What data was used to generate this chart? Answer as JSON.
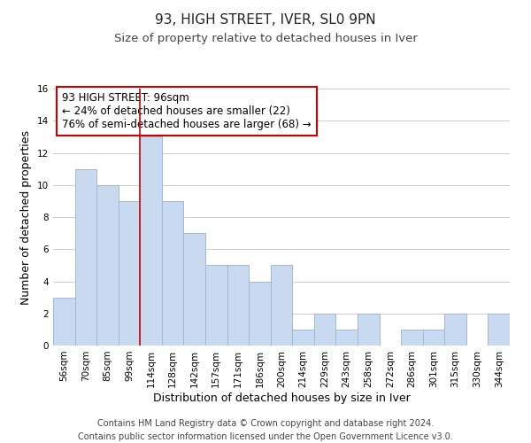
{
  "title": "93, HIGH STREET, IVER, SL0 9PN",
  "subtitle": "Size of property relative to detached houses in Iver",
  "xlabel": "Distribution of detached houses by size in Iver",
  "ylabel": "Number of detached properties",
  "footer_line1": "Contains HM Land Registry data © Crown copyright and database right 2024.",
  "footer_line2": "Contains public sector information licensed under the Open Government Licence v3.0.",
  "annotation_line1": "93 HIGH STREET: 96sqm",
  "annotation_line2": "← 24% of detached houses are smaller (22)",
  "annotation_line3": "76% of semi-detached houses are larger (68) →",
  "bar_labels": [
    "56sqm",
    "70sqm",
    "85sqm",
    "99sqm",
    "114sqm",
    "128sqm",
    "142sqm",
    "157sqm",
    "171sqm",
    "186sqm",
    "200sqm",
    "214sqm",
    "229sqm",
    "243sqm",
    "258sqm",
    "272sqm",
    "286sqm",
    "301sqm",
    "315sqm",
    "330sqm",
    "344sqm"
  ],
  "bar_values": [
    3,
    11,
    10,
    9,
    13,
    9,
    7,
    5,
    5,
    4,
    5,
    1,
    2,
    1,
    2,
    0,
    1,
    1,
    2,
    0,
    2
  ],
  "bar_color": "#c9d9ef",
  "bar_edgecolor": "#a0b8d8",
  "vline_x_idx": 3.5,
  "vline_color": "#cc0000",
  "annotation_box_edgecolor": "#cc0000",
  "annotation_box_facecolor": "#ffffff",
  "ylim": [
    0,
    16
  ],
  "yticks": [
    0,
    2,
    4,
    6,
    8,
    10,
    12,
    14,
    16
  ],
  "background_color": "#ffffff",
  "grid_color": "#cccccc",
  "title_fontsize": 11,
  "subtitle_fontsize": 9.5,
  "axis_label_fontsize": 9,
  "tick_fontsize": 7.5,
  "annotation_fontsize": 8.5,
  "footer_fontsize": 7
}
